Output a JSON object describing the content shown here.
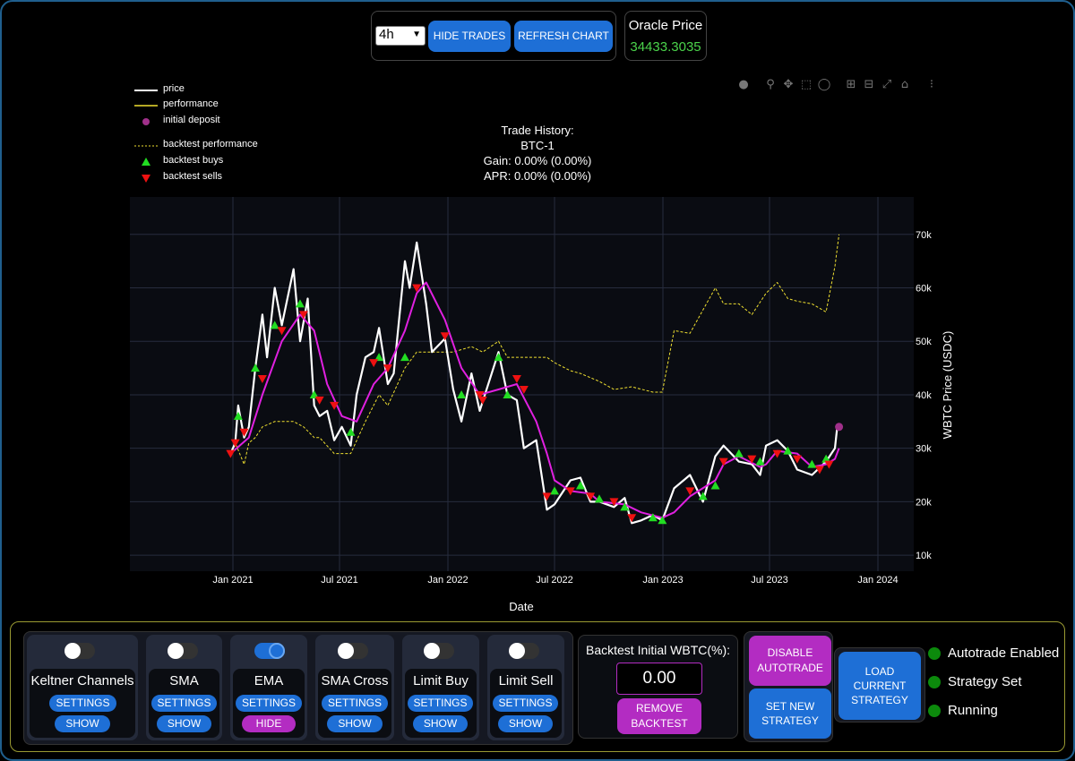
{
  "toolbar": {
    "timeframe": "4h",
    "hide_trades_label": "HIDE TRADES",
    "refresh_chart_label": "REFRESH CHART"
  },
  "oracle": {
    "title": "Oracle Price",
    "value": "34433.3035",
    "value_color": "#4bd34b"
  },
  "modebar": {
    "icons": [
      "camera-icon",
      "zoom-icon",
      "pan-icon",
      "box-select-icon",
      "lasso-icon",
      "zoom-in-icon",
      "zoom-out-icon",
      "autoscale-icon",
      "home-icon",
      "plotly-logo-icon"
    ]
  },
  "legend": {
    "price": "price",
    "performance": "performance",
    "initial_deposit": "initial deposit",
    "backtest_performance": "backtest performance",
    "backtest_buys": "backtest buys",
    "backtest_sells": "backtest sells"
  },
  "chart_title": {
    "line1": "Trade History:",
    "line2": "BTC-1",
    "line3": "Gain: 0.00% (0.00%)",
    "line4": "APR: 0.00% (0.00%)"
  },
  "chart_data": {
    "type": "line",
    "xlabel": "Date",
    "ylabel": "WBTC Price (USDC)",
    "x_ticks": [
      "Jan 2021",
      "Jul 2021",
      "Jan 2022",
      "Jul 2022",
      "Jan 2023",
      "Jul 2023",
      "Jan 2024"
    ],
    "y_ticks": [
      "10k",
      "20k",
      "30k",
      "40k",
      "50k",
      "60k",
      "70k"
    ],
    "ylim": [
      7000,
      77000
    ],
    "colors": {
      "price": "#ffffff",
      "performance": "#f0e030",
      "backtest_performance": "#f0e030",
      "ema": "#e020e0",
      "buys": "#22dd22",
      "sells": "#ee1111",
      "initial_deposit": "#a0308a",
      "plot_bg": "#0a0c12",
      "grid": "#272c3e"
    },
    "series": [
      {
        "name": "price",
        "points": [
          [
            "2020-12-28",
            29000
          ],
          [
            "2021-01-05",
            31000
          ],
          [
            "2021-01-10",
            38000
          ],
          [
            "2021-01-20",
            32000
          ],
          [
            "2021-01-28",
            34000
          ],
          [
            "2021-02-08",
            45000
          ],
          [
            "2021-02-20",
            55000
          ],
          [
            "2021-02-28",
            47000
          ],
          [
            "2021-03-13",
            60000
          ],
          [
            "2021-03-25",
            53000
          ],
          [
            "2021-04-14",
            63500
          ],
          [
            "2021-04-25",
            50000
          ],
          [
            "2021-05-08",
            58000
          ],
          [
            "2021-05-19",
            38000
          ],
          [
            "2021-05-28",
            36000
          ],
          [
            "2021-06-10",
            37000
          ],
          [
            "2021-06-22",
            31500
          ],
          [
            "2021-07-05",
            34000
          ],
          [
            "2021-07-20",
            30500
          ],
          [
            "2021-07-30",
            40000
          ],
          [
            "2021-08-14",
            47000
          ],
          [
            "2021-08-28",
            48000
          ],
          [
            "2021-09-06",
            52500
          ],
          [
            "2021-09-21",
            42000
          ],
          [
            "2021-10-01",
            44000
          ],
          [
            "2021-10-20",
            65000
          ],
          [
            "2021-10-28",
            60000
          ],
          [
            "2021-11-09",
            68500
          ],
          [
            "2021-11-25",
            57000
          ],
          [
            "2021-12-05",
            48000
          ],
          [
            "2021-12-27",
            50500
          ],
          [
            "2022-01-10",
            41000
          ],
          [
            "2022-01-24",
            35000
          ],
          [
            "2022-02-10",
            44000
          ],
          [
            "2022-02-24",
            37000
          ],
          [
            "2022-03-28",
            48000
          ],
          [
            "2022-04-12",
            40000
          ],
          [
            "2022-04-28",
            39000
          ],
          [
            "2022-05-10",
            30000
          ],
          [
            "2022-05-31",
            31500
          ],
          [
            "2022-06-18",
            18500
          ],
          [
            "2022-07-01",
            19500
          ],
          [
            "2022-07-28",
            24000
          ],
          [
            "2022-08-14",
            24500
          ],
          [
            "2022-08-31",
            20000
          ],
          [
            "2022-09-15",
            20000
          ],
          [
            "2022-10-10",
            19000
          ],
          [
            "2022-10-28",
            20700
          ],
          [
            "2022-11-09",
            16000
          ],
          [
            "2022-11-25",
            16500
          ],
          [
            "2022-12-15",
            17500
          ],
          [
            "2022-12-31",
            16500
          ],
          [
            "2023-01-20",
            22500
          ],
          [
            "2023-02-16",
            25000
          ],
          [
            "2023-03-10",
            20000
          ],
          [
            "2023-03-31",
            28500
          ],
          [
            "2023-04-14",
            30500
          ],
          [
            "2023-05-10",
            27500
          ],
          [
            "2023-06-01",
            27000
          ],
          [
            "2023-06-15",
            25000
          ],
          [
            "2023-06-25",
            30500
          ],
          [
            "2023-07-14",
            31500
          ],
          [
            "2023-08-01",
            29500
          ],
          [
            "2023-08-17",
            26000
          ],
          [
            "2023-09-11",
            25000
          ],
          [
            "2023-10-05",
            27500
          ],
          [
            "2023-10-20",
            30000
          ],
          [
            "2023-10-24",
            34000
          ],
          [
            "2023-10-27",
            34433
          ]
        ]
      },
      {
        "name": "backtest performance",
        "points": [
          [
            "2020-12-28",
            29000
          ],
          [
            "2021-01-05",
            31000
          ],
          [
            "2021-01-20",
            27000
          ],
          [
            "2021-01-28",
            31000
          ],
          [
            "2021-02-08",
            32000
          ],
          [
            "2021-02-20",
            34000
          ],
          [
            "2021-03-13",
            35000
          ],
          [
            "2021-04-14",
            35000
          ],
          [
            "2021-05-01",
            34000
          ],
          [
            "2021-05-19",
            32000
          ],
          [
            "2021-05-28",
            32000
          ],
          [
            "2021-06-22",
            29000
          ],
          [
            "2021-07-20",
            29000
          ],
          [
            "2021-08-14",
            35000
          ],
          [
            "2021-09-06",
            40000
          ],
          [
            "2021-09-21",
            38000
          ],
          [
            "2021-10-20",
            45000
          ],
          [
            "2021-11-09",
            48000
          ],
          [
            "2021-12-05",
            48000
          ],
          [
            "2022-01-10",
            48000
          ],
          [
            "2022-02-10",
            49000
          ],
          [
            "2022-03-01",
            48000
          ],
          [
            "2022-03-28",
            50000
          ],
          [
            "2022-04-12",
            47000
          ],
          [
            "2022-05-31",
            47000
          ],
          [
            "2022-06-18",
            47000
          ],
          [
            "2022-07-01",
            46000
          ],
          [
            "2022-07-28",
            44500
          ],
          [
            "2022-08-14",
            44000
          ],
          [
            "2022-09-15",
            42500
          ],
          [
            "2022-10-10",
            41000
          ],
          [
            "2022-11-09",
            41500
          ],
          [
            "2022-12-15",
            40500
          ],
          [
            "2022-12-31",
            40500
          ],
          [
            "2023-01-20",
            52000
          ],
          [
            "2023-02-16",
            51500
          ],
          [
            "2023-03-31",
            60000
          ],
          [
            "2023-04-14",
            57000
          ],
          [
            "2023-05-10",
            57000
          ],
          [
            "2023-06-01",
            55000
          ],
          [
            "2023-06-25",
            59000
          ],
          [
            "2023-07-14",
            61000
          ],
          [
            "2023-08-01",
            58000
          ],
          [
            "2023-08-17",
            57500
          ],
          [
            "2023-09-11",
            57000
          ],
          [
            "2023-10-05",
            55500
          ],
          [
            "2023-10-20",
            64000
          ],
          [
            "2023-10-27",
            70000
          ]
        ]
      },
      {
        "name": "ema",
        "points": [
          [
            "2020-12-28",
            29000
          ],
          [
            "2021-01-28",
            32000
          ],
          [
            "2021-02-20",
            40000
          ],
          [
            "2021-03-25",
            50000
          ],
          [
            "2021-04-25",
            55000
          ],
          [
            "2021-05-19",
            52000
          ],
          [
            "2021-06-10",
            42000
          ],
          [
            "2021-07-05",
            36000
          ],
          [
            "2021-07-30",
            35000
          ],
          [
            "2021-08-28",
            42000
          ],
          [
            "2021-09-21",
            45000
          ],
          [
            "2021-10-20",
            52000
          ],
          [
            "2021-11-09",
            59000
          ],
          [
            "2021-11-25",
            61000
          ],
          [
            "2021-12-27",
            54000
          ],
          [
            "2022-01-24",
            45000
          ],
          [
            "2022-02-24",
            40000
          ],
          [
            "2022-03-28",
            41000
          ],
          [
            "2022-04-28",
            42000
          ],
          [
            "2022-05-31",
            35000
          ],
          [
            "2022-06-18",
            29000
          ],
          [
            "2022-07-01",
            24000
          ],
          [
            "2022-07-28",
            22000
          ],
          [
            "2022-08-31",
            21500
          ],
          [
            "2022-09-15",
            20000
          ],
          [
            "2022-10-28",
            19500
          ],
          [
            "2022-11-25",
            18000
          ],
          [
            "2022-12-31",
            17000
          ],
          [
            "2023-01-20",
            18000
          ],
          [
            "2023-02-16",
            21000
          ],
          [
            "2023-03-31",
            24000
          ],
          [
            "2023-04-14",
            27000
          ],
          [
            "2023-05-10",
            28500
          ],
          [
            "2023-06-15",
            26500
          ],
          [
            "2023-06-25",
            27000
          ],
          [
            "2023-07-14",
            29500
          ],
          [
            "2023-08-17",
            29000
          ],
          [
            "2023-09-11",
            26500
          ],
          [
            "2023-10-05",
            27000
          ],
          [
            "2023-10-20",
            28000
          ],
          [
            "2023-10-27",
            30000
          ]
        ]
      }
    ],
    "buys": [
      [
        "2021-01-10",
        36000
      ],
      [
        "2021-02-08",
        45000
      ],
      [
        "2021-03-13",
        53000
      ],
      [
        "2021-04-25",
        57000
      ],
      [
        "2021-05-19",
        40000
      ],
      [
        "2021-07-20",
        33000
      ],
      [
        "2021-09-06",
        47000
      ],
      [
        "2021-10-20",
        47000
      ],
      [
        "2022-03-28",
        47000
      ],
      [
        "2022-01-24",
        40000
      ],
      [
        "2022-04-12",
        40000
      ],
      [
        "2022-07-01",
        22000
      ],
      [
        "2022-08-14",
        23000
      ],
      [
        "2022-09-15",
        20500
      ],
      [
        "2022-10-28",
        19000
      ],
      [
        "2022-12-15",
        17000
      ],
      [
        "2022-12-31",
        16500
      ],
      [
        "2023-03-10",
        21000
      ],
      [
        "2023-03-31",
        23000
      ],
      [
        "2023-05-10",
        29000
      ],
      [
        "2023-06-15",
        27500
      ],
      [
        "2023-08-01",
        29500
      ],
      [
        "2023-09-11",
        27000
      ],
      [
        "2023-10-05",
        28000
      ]
    ],
    "sells": [
      [
        "2020-12-28",
        29000
      ],
      [
        "2021-01-05",
        31000
      ],
      [
        "2021-01-20",
        33000
      ],
      [
        "2021-02-20",
        43000
      ],
      [
        "2021-03-25",
        52000
      ],
      [
        "2021-05-01",
        55000
      ],
      [
        "2021-05-28",
        39000
      ],
      [
        "2021-06-22",
        38000
      ],
      [
        "2021-08-28",
        46000
      ],
      [
        "2021-09-21",
        45000
      ],
      [
        "2021-11-09",
        60000
      ],
      [
        "2021-12-27",
        51000
      ],
      [
        "2022-02-24",
        40000
      ],
      [
        "2022-03-01",
        39000
      ],
      [
        "2022-04-28",
        43000
      ],
      [
        "2022-05-10",
        41000
      ],
      [
        "2022-06-18",
        21000
      ],
      [
        "2022-07-28",
        22000
      ],
      [
        "2022-08-31",
        21000
      ],
      [
        "2022-10-10",
        20000
      ],
      [
        "2022-11-09",
        17000
      ],
      [
        "2023-02-16",
        22000
      ],
      [
        "2023-04-14",
        27500
      ],
      [
        "2023-06-01",
        28000
      ],
      [
        "2023-07-14",
        29000
      ],
      [
        "2023-08-17",
        28000
      ],
      [
        "2023-09-24",
        26000
      ],
      [
        "2023-10-10",
        27000
      ]
    ],
    "initial_deposit": [
      [
        "2023-10-27",
        34000
      ]
    ],
    "legend_position": "top-left",
    "grid": true
  },
  "indicators": [
    {
      "name": "Keltner Channels",
      "enabled": false,
      "settings_label": "SETTINGS",
      "toggle_label": "SHOW"
    },
    {
      "name": "SMA",
      "enabled": false,
      "settings_label": "SETTINGS",
      "toggle_label": "SHOW"
    },
    {
      "name": "EMA",
      "enabled": true,
      "settings_label": "SETTINGS",
      "toggle_label": "HIDE"
    },
    {
      "name": "SMA Cross",
      "enabled": false,
      "settings_label": "SETTINGS",
      "toggle_label": "SHOW"
    },
    {
      "name": "Limit Buy",
      "enabled": false,
      "settings_label": "SETTINGS",
      "toggle_label": "SHOW"
    },
    {
      "name": "Limit Sell",
      "enabled": false,
      "settings_label": "SETTINGS",
      "toggle_label": "SHOW"
    }
  ],
  "backtest": {
    "title": "Backtest Initial WBTC(%):",
    "value": "0.00",
    "remove_label_1": "REMOVE",
    "remove_label_2": "BACKTEST"
  },
  "autotrade": {
    "disable_label_1": "DISABLE",
    "disable_label_2": "AUTOTRADE",
    "set_strategy_label_1": "SET NEW",
    "set_strategy_label_2": "STRATEGY",
    "load_label_1": "LOAD",
    "load_label_2": "CURRENT",
    "load_label_3": "STRATEGY"
  },
  "statuses": [
    {
      "label": "Autotrade Enabled",
      "color": "#0c8a0c"
    },
    {
      "label": "Strategy Set",
      "color": "#0c8a0c"
    },
    {
      "label": "Running",
      "color": "#0c8a0c"
    }
  ]
}
